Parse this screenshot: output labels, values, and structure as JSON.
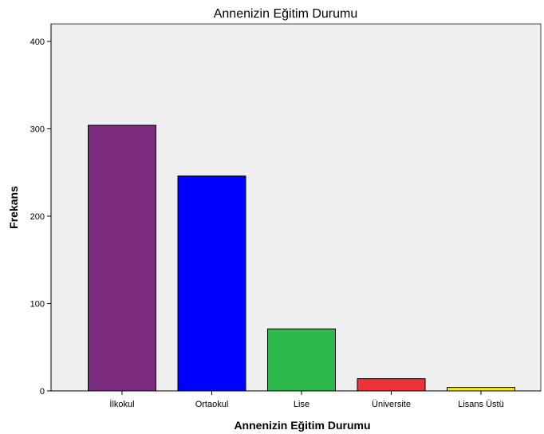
{
  "chart_data": {
    "type": "bar",
    "title": "Annenizin Eğitim Durumu",
    "xlabel": "Annenizin Eğitim Durumu",
    "ylabel": "Frekans",
    "categories": [
      "İlkokul",
      "Ortaokul",
      "Lise",
      "Üniversite",
      "Lisans Üstü"
    ],
    "values": [
      304,
      246,
      71,
      14,
      4
    ],
    "colors": [
      "#7b2b7d",
      "#0000ff",
      "#2db84b",
      "#ee3338",
      "#f0ec2a"
    ],
    "ylim": [
      0,
      420
    ],
    "yticks": [
      0,
      100,
      200,
      300,
      400
    ],
    "ytick_labels": [
      "0",
      "100",
      "200",
      "300",
      "400"
    ],
    "plot_background": "#efefef",
    "grid": false,
    "legend": "none"
  }
}
